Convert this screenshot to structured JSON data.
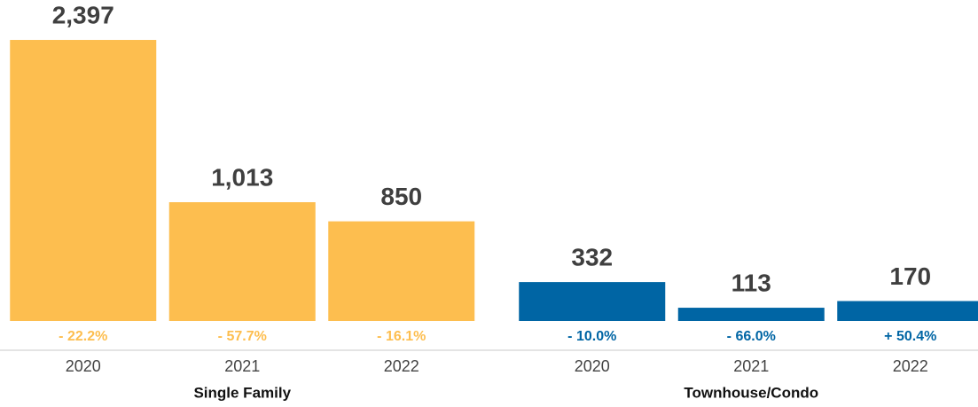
{
  "chart_data": [
    {
      "type": "bar",
      "title": "Single Family",
      "categories": [
        "2020",
        "2021",
        "2022"
      ],
      "values": [
        2397,
        1013,
        850
      ],
      "value_labels": [
        "2,397",
        "1,013",
        "850"
      ],
      "changes": [
        -22.2,
        -57.7,
        -16.1
      ],
      "change_labels": [
        "- 22.2%",
        "- 57.7%",
        "- 16.1%"
      ],
      "color": "#fdbe4f",
      "ylim": [
        0,
        2500
      ]
    },
    {
      "type": "bar",
      "title": "Townhouse/Condo",
      "categories": [
        "2020",
        "2021",
        "2022"
      ],
      "values": [
        332,
        113,
        170
      ],
      "value_labels": [
        "332",
        "113",
        "170"
      ],
      "changes": [
        -10.0,
        -66.0,
        50.4
      ],
      "change_labels": [
        "- 10.0%",
        "- 66.0%",
        "+ 50.4%"
      ],
      "color": "#0065a4",
      "ylim": [
        0,
        2500
      ]
    }
  ]
}
